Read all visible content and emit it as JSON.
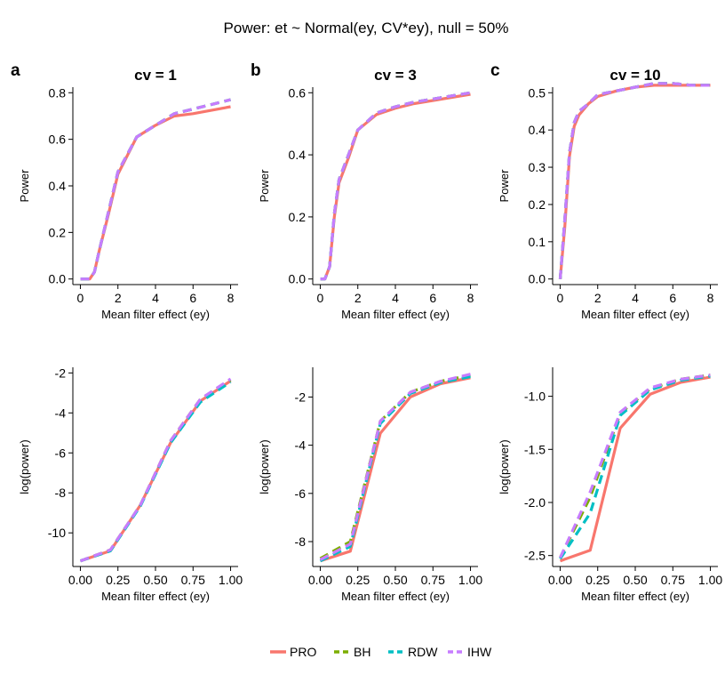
{
  "figure": {
    "title": "Power: et ~ Normal(ey, CV*ey), null = 50%",
    "legend": {
      "placement": "bottom",
      "items": [
        {
          "name": "PRO",
          "color": "#F8766D",
          "dash": "solid"
        },
        {
          "name": "BH",
          "color": "#7CAE00",
          "dash": "dashed"
        },
        {
          "name": "RDW",
          "color": "#00BFC4",
          "dash": "dashed"
        },
        {
          "name": "IHW",
          "color": "#C77CFF",
          "dash": "dashed"
        }
      ]
    }
  },
  "chart_data": [
    {
      "type": "line",
      "panel_label": "a",
      "title": "cv = 1",
      "xlabel": "Mean filter effect (ey)",
      "ylabel": "Power",
      "xlim": [
        0,
        8
      ],
      "ylim": [
        0,
        0.8
      ],
      "xticks": [
        0,
        2,
        4,
        6,
        8
      ],
      "xtick_labels": [
        "0",
        "2",
        "4",
        "6",
        "8"
      ],
      "yticks": [
        0,
        0.2,
        0.4,
        0.6,
        0.8
      ],
      "ytick_labels": [
        "0.0",
        "0.2",
        "0.4",
        "0.6",
        "0.8"
      ],
      "grid": false,
      "series": [
        {
          "name": "PRO",
          "x": [
            0,
            0.5,
            0.75,
            1,
            1.5,
            2,
            3,
            4,
            5,
            6,
            7,
            8
          ],
          "y": [
            0.0,
            0.0,
            0.03,
            0.12,
            0.28,
            0.45,
            0.61,
            0.66,
            0.7,
            0.71,
            0.725,
            0.74
          ]
        },
        {
          "name": "BH",
          "x": [
            0,
            0.5,
            0.75,
            1,
            1.5,
            2,
            3,
            4,
            5,
            6,
            7,
            8
          ],
          "y": [
            0.0,
            0.0,
            0.03,
            0.12,
            0.29,
            0.46,
            0.61,
            0.66,
            0.71,
            0.73,
            0.75,
            0.77
          ]
        },
        {
          "name": "RDW",
          "x": [
            0,
            0.5,
            0.75,
            1,
            1.5,
            2,
            3,
            4,
            5,
            6,
            7,
            8
          ],
          "y": [
            0.0,
            0.0,
            0.03,
            0.12,
            0.29,
            0.46,
            0.61,
            0.66,
            0.71,
            0.73,
            0.75,
            0.77
          ]
        },
        {
          "name": "IHW",
          "x": [
            0,
            0.5,
            0.75,
            1,
            1.5,
            2,
            3,
            4,
            5,
            6,
            7,
            8
          ],
          "y": [
            0.0,
            0.0,
            0.03,
            0.12,
            0.29,
            0.46,
            0.61,
            0.66,
            0.71,
            0.73,
            0.75,
            0.77
          ]
        }
      ]
    },
    {
      "type": "line",
      "panel_label": "b",
      "title": "cv = 3",
      "xlabel": "Mean filter effect (ey)",
      "ylabel": "Power",
      "xlim": [
        0,
        8
      ],
      "ylim": [
        0,
        0.6
      ],
      "xticks": [
        0,
        2,
        4,
        6,
        8
      ],
      "xtick_labels": [
        "0",
        "2",
        "4",
        "6",
        "8"
      ],
      "yticks": [
        0,
        0.2,
        0.4,
        0.6
      ],
      "ytick_labels": [
        "0.0",
        "0.2",
        "0.4",
        "0.6"
      ],
      "grid": false,
      "series": [
        {
          "name": "PRO",
          "x": [
            0,
            0.25,
            0.5,
            0.75,
            1,
            1.5,
            2,
            3,
            4,
            5,
            6,
            7,
            8
          ],
          "y": [
            0.0,
            0.0,
            0.04,
            0.2,
            0.31,
            0.39,
            0.48,
            0.53,
            0.55,
            0.565,
            0.575,
            0.585,
            0.595
          ]
        },
        {
          "name": "BH",
          "x": [
            0,
            0.25,
            0.5,
            0.75,
            1,
            1.5,
            2,
            3,
            4,
            5,
            6,
            7,
            8
          ],
          "y": [
            0.0,
            0.0,
            0.04,
            0.21,
            0.32,
            0.4,
            0.48,
            0.535,
            0.555,
            0.57,
            0.58,
            0.59,
            0.6
          ]
        },
        {
          "name": "RDW",
          "x": [
            0,
            0.25,
            0.5,
            0.75,
            1,
            1.5,
            2,
            3,
            4,
            5,
            6,
            7,
            8
          ],
          "y": [
            0.0,
            0.0,
            0.04,
            0.21,
            0.32,
            0.4,
            0.48,
            0.535,
            0.555,
            0.57,
            0.58,
            0.59,
            0.6
          ]
        },
        {
          "name": "IHW",
          "x": [
            0,
            0.25,
            0.5,
            0.75,
            1,
            1.5,
            2,
            3,
            4,
            5,
            6,
            7,
            8
          ],
          "y": [
            0.0,
            0.0,
            0.04,
            0.21,
            0.32,
            0.4,
            0.48,
            0.535,
            0.555,
            0.57,
            0.58,
            0.59,
            0.6
          ]
        }
      ]
    },
    {
      "type": "line",
      "panel_label": "c",
      "title": "cv = 10",
      "xlabel": "Mean filter effect (ey)",
      "ylabel": "Power",
      "xlim": [
        0,
        8
      ],
      "ylim": [
        0,
        0.5
      ],
      "xticks": [
        0,
        2,
        4,
        6,
        8
      ],
      "xtick_labels": [
        "0",
        "2",
        "4",
        "6",
        "8"
      ],
      "yticks": [
        0,
        0.1,
        0.2,
        0.3,
        0.4,
        0.5
      ],
      "ytick_labels": [
        "0.0",
        "0.1",
        "0.2",
        "0.3",
        "0.4",
        "0.5"
      ],
      "grid": false,
      "series": [
        {
          "name": "PRO",
          "x": [
            0,
            0.25,
            0.5,
            0.75,
            1,
            1.5,
            2,
            3,
            4,
            5,
            6,
            7,
            8
          ],
          "y": [
            0.0,
            0.14,
            0.33,
            0.41,
            0.44,
            0.47,
            0.49,
            0.505,
            0.515,
            0.52,
            0.52,
            0.52,
            0.52
          ]
        },
        {
          "name": "BH",
          "x": [
            0,
            0.25,
            0.5,
            0.75,
            1,
            1.5,
            2,
            3,
            4,
            5,
            6,
            7,
            8
          ],
          "y": [
            0.0,
            0.16,
            0.34,
            0.42,
            0.45,
            0.47,
            0.495,
            0.505,
            0.515,
            0.525,
            0.525,
            0.52,
            0.52
          ]
        },
        {
          "name": "RDW",
          "x": [
            0,
            0.25,
            0.5,
            0.75,
            1,
            1.5,
            2,
            3,
            4,
            5,
            6,
            7,
            8
          ],
          "y": [
            0.0,
            0.16,
            0.34,
            0.42,
            0.45,
            0.47,
            0.495,
            0.505,
            0.515,
            0.525,
            0.525,
            0.52,
            0.52
          ]
        },
        {
          "name": "IHW",
          "x": [
            0,
            0.25,
            0.5,
            0.75,
            1,
            1.5,
            2,
            3,
            4,
            5,
            6,
            7,
            8
          ],
          "y": [
            0.0,
            0.16,
            0.34,
            0.42,
            0.45,
            0.47,
            0.495,
            0.505,
            0.515,
            0.525,
            0.525,
            0.52,
            0.52
          ]
        }
      ]
    },
    {
      "type": "line",
      "panel_label": "",
      "title": "",
      "xlabel": "Mean filter effect (ey)",
      "ylabel": "log(power)",
      "xlim": [
        0,
        1
      ],
      "ylim": [
        -11.4,
        -2.0
      ],
      "xticks": [
        0,
        0.25,
        0.5,
        0.75,
        1
      ],
      "xtick_labels": [
        "0.00",
        "0.25",
        "0.50",
        "0.75",
        "1.00"
      ],
      "yticks": [
        -10,
        -8,
        -6,
        -4,
        -2
      ],
      "ytick_labels": [
        "-10",
        "-8",
        "-6",
        "-4",
        "-2"
      ],
      "grid": false,
      "series": [
        {
          "name": "PRO",
          "x": [
            0,
            0.2,
            0.4,
            0.6,
            0.8,
            1.0
          ],
          "y": [
            -11.4,
            -10.9,
            -8.6,
            -5.5,
            -3.4,
            -2.4
          ]
        },
        {
          "name": "BH",
          "x": [
            0,
            0.2,
            0.4,
            0.6,
            0.8,
            1.0
          ],
          "y": [
            -11.4,
            -10.85,
            -8.6,
            -5.4,
            -3.3,
            -2.35
          ]
        },
        {
          "name": "RDW",
          "x": [
            0,
            0.2,
            0.4,
            0.6,
            0.8,
            1.0
          ],
          "y": [
            -11.4,
            -10.9,
            -8.65,
            -5.5,
            -3.45,
            -2.45
          ]
        },
        {
          "name": "IHW",
          "x": [
            0,
            0.2,
            0.4,
            0.6,
            0.8,
            1.0
          ],
          "y": [
            -11.4,
            -10.85,
            -8.6,
            -5.4,
            -3.3,
            -2.3
          ]
        }
      ]
    },
    {
      "type": "line",
      "panel_label": "",
      "title": "",
      "xlabel": "Mean filter effect (ey)",
      "ylabel": "log(power)",
      "xlim": [
        0,
        1
      ],
      "ylim": [
        -8.8,
        -1.0
      ],
      "xticks": [
        0,
        0.25,
        0.5,
        0.75,
        1
      ],
      "xtick_labels": [
        "0.00",
        "0.25",
        "0.50",
        "0.75",
        "1.00"
      ],
      "yticks": [
        -8,
        -6,
        -4,
        -2
      ],
      "ytick_labels": [
        "-8",
        "-6",
        "-4",
        "-2"
      ],
      "grid": false,
      "series": [
        {
          "name": "PRO",
          "x": [
            0,
            0.2,
            0.4,
            0.6,
            0.8,
            1.0
          ],
          "y": [
            -8.8,
            -8.4,
            -3.5,
            -2.0,
            -1.45,
            -1.2
          ]
        },
        {
          "name": "BH",
          "x": [
            0,
            0.2,
            0.4,
            0.6,
            0.8,
            1.0
          ],
          "y": [
            -8.7,
            -8.0,
            -3.0,
            -1.8,
            -1.35,
            -1.1
          ]
        },
        {
          "name": "RDW",
          "x": [
            0,
            0.2,
            0.4,
            0.6,
            0.8,
            1.0
          ],
          "y": [
            -8.8,
            -8.2,
            -3.1,
            -1.85,
            -1.4,
            -1.15
          ]
        },
        {
          "name": "IHW",
          "x": [
            0,
            0.2,
            0.4,
            0.6,
            0.8,
            1.0
          ],
          "y": [
            -8.75,
            -8.1,
            -3.0,
            -1.8,
            -1.35,
            -1.05
          ]
        }
      ]
    },
    {
      "type": "line",
      "panel_label": "",
      "title": "",
      "xlabel": "Mean filter effect (ey)",
      "ylabel": "log(power)",
      "xlim": [
        0,
        1
      ],
      "ylim": [
        -2.55,
        -0.78
      ],
      "xticks": [
        0,
        0.25,
        0.5,
        0.75,
        1
      ],
      "xtick_labels": [
        "0.00",
        "0.25",
        "0.50",
        "0.75",
        "1.00"
      ],
      "yticks": [
        -2.5,
        -2.0,
        -1.5,
        -1.0
      ],
      "ytick_labels": [
        "-2.5",
        "-2.0",
        "-1.5",
        "-1.0"
      ],
      "grid": false,
      "series": [
        {
          "name": "PRO",
          "x": [
            0,
            0.2,
            0.4,
            0.6,
            0.8,
            1.0
          ],
          "y": [
            -2.55,
            -2.45,
            -1.3,
            -0.98,
            -0.87,
            -0.82
          ]
        },
        {
          "name": "BH",
          "x": [
            0,
            0.2,
            0.4,
            0.6,
            0.8,
            1.0
          ],
          "y": [
            -2.52,
            -1.95,
            -1.16,
            -0.93,
            -0.84,
            -0.8
          ]
        },
        {
          "name": "RDW",
          "x": [
            0,
            0.2,
            0.4,
            0.6,
            0.8,
            1.0
          ],
          "y": [
            -2.53,
            -2.1,
            -1.18,
            -0.94,
            -0.85,
            -0.81
          ]
        },
        {
          "name": "IHW",
          "x": [
            0,
            0.2,
            0.4,
            0.6,
            0.8,
            1.0
          ],
          "y": [
            -2.52,
            -1.9,
            -1.15,
            -0.92,
            -0.84,
            -0.8
          ]
        }
      ]
    }
  ]
}
